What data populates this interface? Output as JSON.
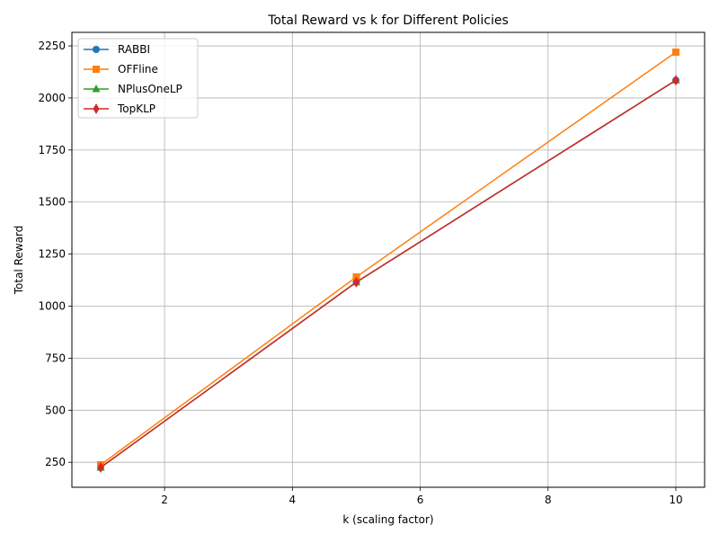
{
  "chart_data": {
    "type": "line",
    "title": "Total Reward vs k for Different Policies",
    "xlabel": "k (scaling factor)",
    "ylabel": "Total Reward",
    "x": [
      1,
      5,
      10
    ],
    "xlim": [
      0.55,
      10.45
    ],
    "ylim": [
      130,
      2315
    ],
    "xticks": [
      2,
      4,
      6,
      8,
      10
    ],
    "yticks": [
      250,
      500,
      750,
      1000,
      1250,
      1500,
      1750,
      2000,
      2250
    ],
    "grid": true,
    "legend_position": "upper-left",
    "series": [
      {
        "name": "RABBI",
        "values": [
          225,
          1115,
          2085
        ],
        "color": "#1f77b4",
        "marker": "circle"
      },
      {
        "name": "OFFline",
        "values": [
          238,
          1140,
          2220
        ],
        "color": "#ff7f0e",
        "marker": "square"
      },
      {
        "name": "NPlusOneLP",
        "values": [
          225,
          1115,
          2085
        ],
        "color": "#2ca02c",
        "marker": "triangle"
      },
      {
        "name": "TopKLP",
        "values": [
          225,
          1115,
          2085
        ],
        "color": "#d62728",
        "marker": "diamond"
      }
    ]
  }
}
